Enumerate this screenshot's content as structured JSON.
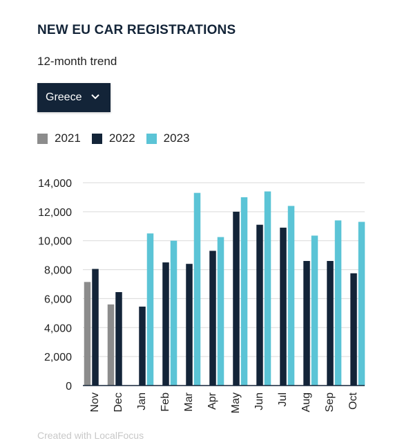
{
  "header": {
    "title": "NEW EU CAR REGISTRATIONS",
    "subtitle": "12-month trend"
  },
  "country_select": {
    "selected": "Greece"
  },
  "colors": {
    "2021": "#8c8c8c",
    "2022": "#132438",
    "2023": "#5bc4d6",
    "grid": "#d9d9d9",
    "axis": "#132438"
  },
  "footer": {
    "credit": "Created with LocalFocus"
  },
  "chart_data": {
    "type": "bar",
    "categories": [
      "Nov",
      "Dec",
      "Jan",
      "Feb",
      "Mar",
      "Apr",
      "May",
      "Jun",
      "Jul",
      "Aug",
      "Sep",
      "Oct"
    ],
    "series": [
      {
        "name": "2021",
        "values": [
          7150,
          5600,
          null,
          null,
          null,
          null,
          null,
          null,
          null,
          null,
          null,
          null
        ]
      },
      {
        "name": "2022",
        "values": [
          8050,
          6450,
          5450,
          8500,
          8400,
          9300,
          12000,
          11100,
          10900,
          8600,
          8600,
          7750
        ]
      },
      {
        "name": "2023",
        "values": [
          null,
          null,
          10500,
          10000,
          13300,
          10250,
          13000,
          13400,
          12400,
          10350,
          11400,
          11300
        ]
      }
    ],
    "ylim": [
      0,
      14000
    ],
    "yticks": [
      0,
      2000,
      4000,
      6000,
      8000,
      10000,
      12000,
      14000
    ],
    "ytick_labels": [
      "0",
      "2,000",
      "4,000",
      "6,000",
      "8,000",
      "10,000",
      "12,000",
      "14,000"
    ],
    "grid": true,
    "legend_position": "top-left",
    "xlabel": "",
    "ylabel": ""
  }
}
